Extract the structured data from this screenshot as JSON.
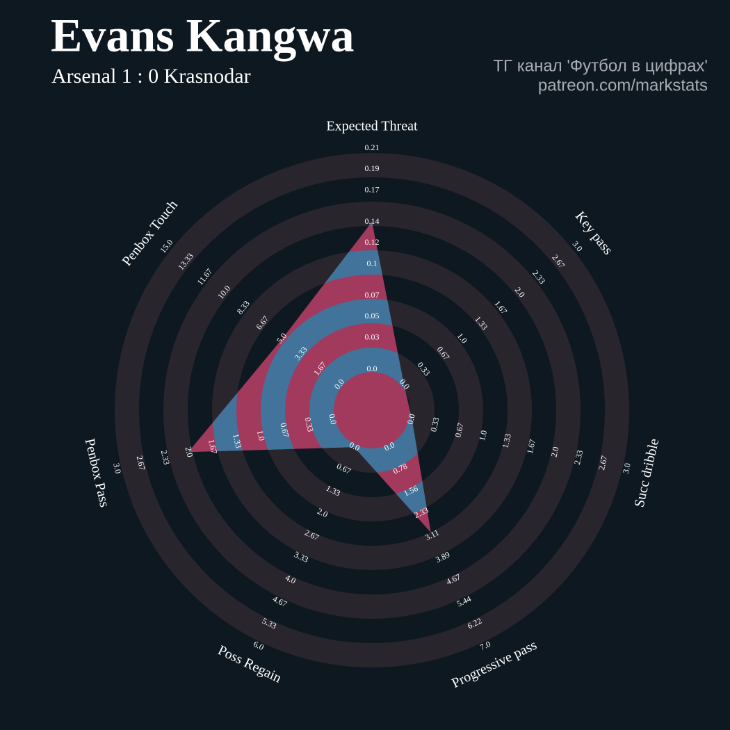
{
  "chart_data": {
    "type": "radar",
    "title": "Evans Kangwa",
    "subtitle": "Arsenal 1 : 0 Krasnodar",
    "credits": [
      "ТГ канал 'Футбол в цифрах'",
      "patreon.com/markstats"
    ],
    "colors": {
      "background": "#0e1820",
      "ring": "#28252c",
      "fill": "#a23a5e",
      "fill_alt": "#41739b"
    },
    "axes": [
      {
        "label": "Expected Threat",
        "lim": [
          0,
          0.21
        ],
        "ticks": [
          {
            "value": 0,
            "label": "0.0"
          },
          0.03,
          0.05,
          0.07,
          0.1,
          0.12,
          0.14,
          0.17,
          0.19,
          0.21
        ]
      },
      {
        "label": "Key pass",
        "lim": [
          0,
          3
        ],
        "ticks": [
          {
            "value": 0,
            "label": "0.0"
          },
          0.33,
          0.67,
          {
            "value": 1,
            "label": "1.0"
          },
          1.33,
          1.67,
          {
            "value": 2,
            "label": "2.0"
          },
          2.33,
          2.67,
          {
            "value": 3,
            "label": "3.0"
          }
        ]
      },
      {
        "label": "Succ dribble",
        "lim": [
          0,
          3
        ],
        "ticks": [
          {
            "value": 0,
            "label": "0.0"
          },
          0.33,
          0.67,
          {
            "value": 1,
            "label": "1.0"
          },
          1.33,
          1.67,
          {
            "value": 2,
            "label": "2.0"
          },
          2.33,
          2.67,
          {
            "value": 3,
            "label": "3.0"
          }
        ]
      },
      {
        "label": "Progressive pass",
        "lim": [
          0,
          7
        ],
        "ticks": [
          {
            "value": 0,
            "label": "0.0"
          },
          0.78,
          1.56,
          2.33,
          3.11,
          3.89,
          4.67,
          5.44,
          6.22,
          {
            "value": 7,
            "label": "7.0"
          }
        ]
      },
      {
        "label": "Poss Regain",
        "lim": [
          0,
          6
        ],
        "ticks": [
          {
            "value": 0,
            "label": "0.0"
          },
          0.67,
          1.33,
          {
            "value": 2,
            "label": "2.0"
          },
          2.67,
          3.33,
          {
            "value": 4,
            "label": "4.0"
          },
          4.67,
          5.33,
          {
            "value": 6,
            "label": "6.0"
          }
        ]
      },
      {
        "label": "Penbox Pass",
        "lim": [
          0,
          3
        ],
        "ticks": [
          {
            "value": 0,
            "label": "0.0"
          },
          0.33,
          0.67,
          {
            "value": 1,
            "label": "1.0"
          },
          1.33,
          1.67,
          {
            "value": 2,
            "label": "2.0"
          },
          2.33,
          2.67,
          {
            "value": 3,
            "label": "3.0"
          }
        ]
      },
      {
        "label": "Penbox Touch",
        "lim": [
          0,
          15
        ],
        "ticks": [
          {
            "value": 0,
            "label": "0.0"
          },
          1.67,
          3.33,
          {
            "value": 5,
            "label": "5.0"
          },
          6.67,
          8.33,
          {
            "value": 10,
            "label": "10.0"
          },
          11.67,
          13.33,
          {
            "value": 15,
            "label": "15.0"
          }
        ]
      }
    ],
    "values": [
      0.14,
      0,
      0,
      3,
      0,
      2,
      5
    ]
  }
}
